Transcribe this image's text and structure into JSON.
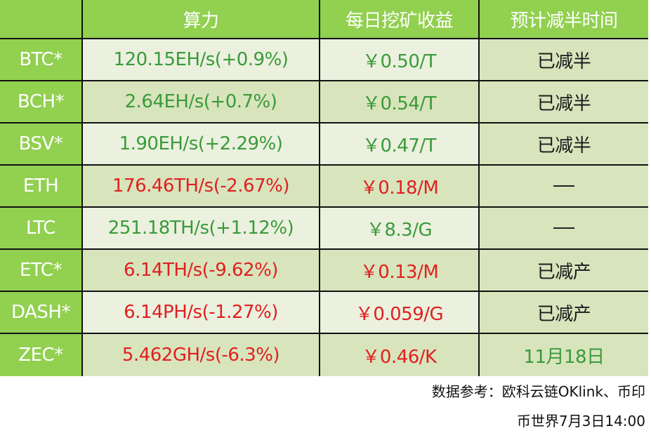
{
  "table": {
    "headers": [
      "",
      "算力",
      "每日挖矿收益",
      "预计减半时间"
    ],
    "rows": [
      {
        "coin": "BTC*",
        "hashrate": "120.15EH/s(+0.9%)",
        "hashrate_trend": "up",
        "income": "￥0.50/T",
        "income_trend": "up",
        "halving": "已减半",
        "halving_type": "text"
      },
      {
        "coin": "BCH*",
        "hashrate": "2.64EH/s(+0.7%)",
        "hashrate_trend": "up",
        "income": "￥0.54/T",
        "income_trend": "up",
        "halving": "已减半",
        "halving_type": "text"
      },
      {
        "coin": "BSV*",
        "hashrate": "1.90EH/s(+2.29%)",
        "hashrate_trend": "up",
        "income": "￥0.47/T",
        "income_trend": "up",
        "halving": "已减半",
        "halving_type": "text"
      },
      {
        "coin": "ETH",
        "hashrate": "176.46TH/s(-2.67%)",
        "hashrate_trend": "down",
        "income": "￥0.18/M",
        "income_trend": "down",
        "halving": "—",
        "halving_type": "dash"
      },
      {
        "coin": "LTC",
        "hashrate": "251.18TH/s(+1.12%)",
        "hashrate_trend": "up",
        "income": "￥8.3/G",
        "income_trend": "up",
        "halving": "—",
        "halving_type": "dash"
      },
      {
        "coin": "ETC*",
        "hashrate": "6.14TH/s(-9.62%)",
        "hashrate_trend": "down",
        "income": "￥0.13/M",
        "income_trend": "down",
        "halving": "已减产",
        "halving_type": "text"
      },
      {
        "coin": "DASH*",
        "hashrate": "6.14PH/s(-1.27%)",
        "hashrate_trend": "down",
        "income": "￥0.059/G",
        "income_trend": "down",
        "halving": "已减产",
        "halving_type": "text"
      },
      {
        "coin": "ZEC*",
        "hashrate": "5.462GH/s(-6.3%)",
        "hashrate_trend": "down",
        "income": "￥0.46/K",
        "income_trend": "down",
        "halving": "11月18日",
        "halving_type": "date"
      }
    ]
  },
  "footer": {
    "source": "数据参考：欧科云链OKlink、币印",
    "credit": "币世界7月3日14:00"
  },
  "colors": {
    "header_green": "#92d050",
    "row_light": "#ebf1de",
    "row_mid": "#d8e4bc",
    "positive": "#3a9a3a",
    "negative": "#e02020"
  }
}
